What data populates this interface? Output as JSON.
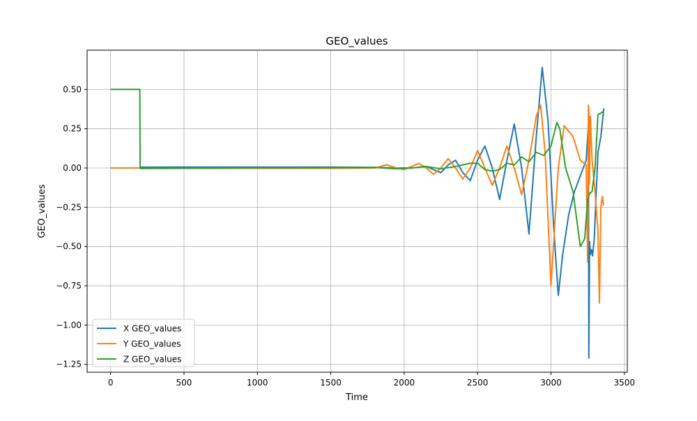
{
  "chart_data": {
    "type": "line",
    "title": "GEO_values",
    "xlabel": "Time",
    "ylabel": "GEO_values",
    "xlim": [
      -160,
      3520
    ],
    "ylim": [
      -1.3,
      0.75
    ],
    "xticks": [
      0,
      500,
      1000,
      1500,
      2000,
      2500,
      3000,
      3500
    ],
    "xtick_labels": [
      "0",
      "500",
      "1000",
      "1500",
      "2000",
      "2500",
      "3000",
      "3500"
    ],
    "yticks": [
      0.5,
      0.25,
      0.0,
      -0.25,
      -0.5,
      -0.75,
      -1.0,
      -1.25
    ],
    "ytick_labels": [
      "0.50",
      "0.25",
      "0.00",
      "−0.25",
      "−0.50",
      "−0.75",
      "−1.00",
      "−1.25"
    ],
    "grid": true,
    "legend_position": "lower-left",
    "series": [
      {
        "name": "X GEO_values",
        "color": "#1f77b4",
        "x": [
          0,
          199,
          201,
          500,
          1000,
          1500,
          1800,
          1950,
          2050,
          2150,
          2200,
          2250,
          2300,
          2350,
          2400,
          2450,
          2500,
          2550,
          2600,
          2650,
          2700,
          2750,
          2800,
          2850,
          2900,
          2940,
          2980,
          3020,
          3050,
          3080,
          3120,
          3160,
          3200,
          3240,
          3255,
          3258,
          3263,
          3268,
          3275,
          3283,
          3295,
          3320,
          3340,
          3360
        ],
        "y": [
          0,
          0,
          0.005,
          0.006,
          0.006,
          0.006,
          0.004,
          0.0,
          0.0,
          0.01,
          -0.01,
          -0.03,
          0.02,
          0.05,
          -0.03,
          -0.08,
          0.05,
          0.14,
          0.0,
          -0.2,
          0.05,
          0.28,
          0.0,
          -0.42,
          0.2,
          0.64,
          0.3,
          -0.4,
          -0.81,
          -0.55,
          -0.3,
          -0.15,
          -0.05,
          0.05,
          0.27,
          -1.21,
          -0.47,
          -0.55,
          -0.52,
          -0.56,
          -0.45,
          0.1,
          0.2,
          0.38
        ]
      },
      {
        "name": "Y GEO_values",
        "color": "#ff7f0e",
        "x": [
          0,
          199,
          201,
          500,
          1000,
          1500,
          1800,
          1880,
          1950,
          2000,
          2050,
          2100,
          2150,
          2200,
          2250,
          2300,
          2350,
          2400,
          2450,
          2500,
          2550,
          2600,
          2650,
          2700,
          2750,
          2800,
          2850,
          2900,
          2930,
          2960,
          3000,
          3050,
          3090,
          3150,
          3200,
          3240,
          3250,
          3255,
          3258,
          3262,
          3268,
          3280,
          3300,
          3320,
          3330,
          3340,
          3350,
          3358
        ],
        "y": [
          0,
          0,
          -0.002,
          -0.002,
          -0.002,
          -0.002,
          0.0,
          0.02,
          0.0,
          -0.01,
          0.01,
          0.03,
          0.0,
          -0.04,
          0.0,
          0.06,
          0.0,
          -0.07,
          0.0,
          0.11,
          0.0,
          -0.11,
          0.0,
          0.14,
          0.0,
          -0.17,
          0.05,
          0.33,
          0.4,
          0.1,
          -0.75,
          0.0,
          0.27,
          0.2,
          0.05,
          0.02,
          -0.6,
          0.4,
          0.36,
          -0.1,
          0.33,
          0.05,
          -0.15,
          -0.4,
          -0.86,
          -0.25,
          -0.18,
          -0.24
        ]
      },
      {
        "name": "Z GEO_values",
        "color": "#2ca02c",
        "x": [
          0,
          199,
          201,
          500,
          1000,
          1500,
          1800,
          1950,
          2050,
          2150,
          2250,
          2350,
          2400,
          2450,
          2500,
          2550,
          2600,
          2650,
          2700,
          2750,
          2800,
          2850,
          2900,
          2950,
          3000,
          3040,
          3060,
          3100,
          3150,
          3200,
          3230,
          3250,
          3265,
          3280,
          3300,
          3320,
          3340,
          3358
        ],
        "y": [
          0.5,
          0.5,
          -0.003,
          -0.002,
          0.001,
          0.002,
          0.003,
          -0.005,
          0.0,
          0.01,
          -0.005,
          0.01,
          0.02,
          0.03,
          0.03,
          -0.01,
          -0.02,
          -0.01,
          0.03,
          0.02,
          0.07,
          0.04,
          0.1,
          0.08,
          0.14,
          0.29,
          0.25,
          0.0,
          -0.15,
          -0.5,
          -0.45,
          -0.2,
          -0.16,
          -0.15,
          0.0,
          0.34,
          0.35,
          0.36
        ]
      }
    ]
  }
}
